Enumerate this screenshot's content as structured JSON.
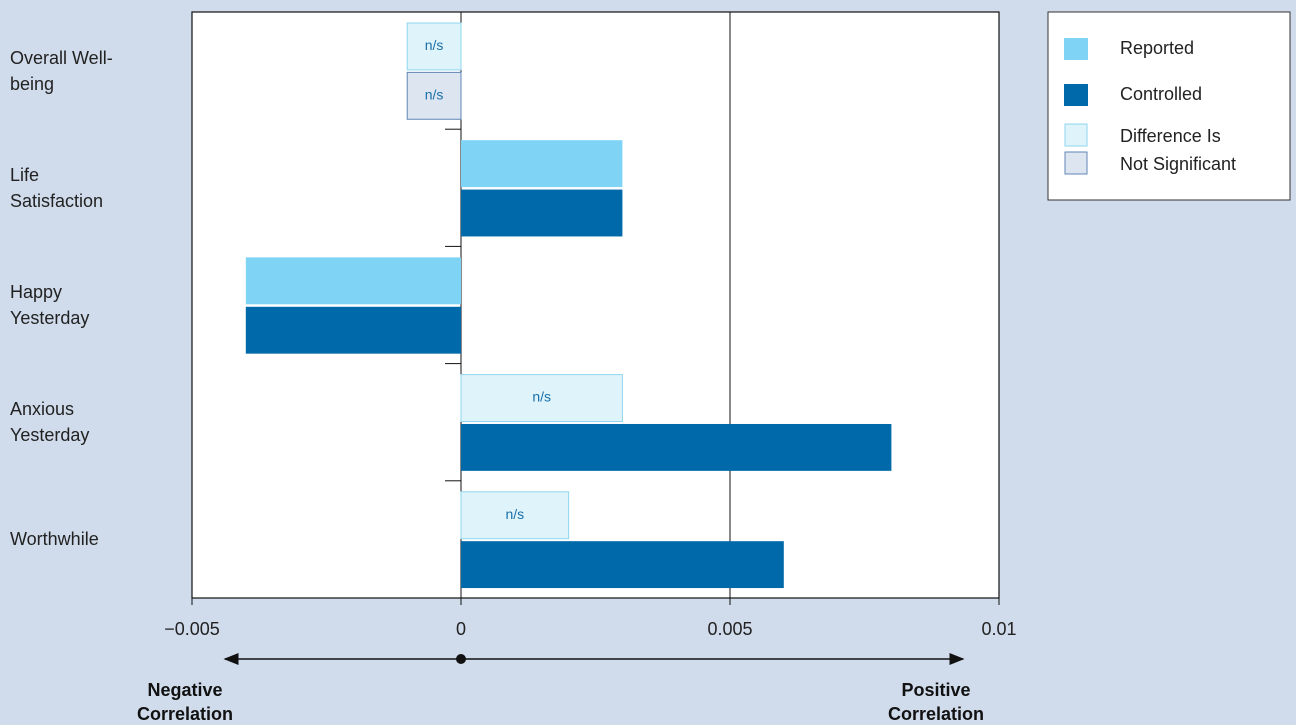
{
  "chart_data": {
    "type": "hbar",
    "categories": [
      "Overall Well-being",
      "Life Satisfaction",
      "Happy Yesterday",
      "Anxious Yesterday",
      "Worthwhile"
    ],
    "series": [
      {
        "name": "Reported",
        "color": "#7fd3f5",
        "ns_color": "#dff3fb",
        "ns_edge_color": "#8fd6ef",
        "values": [
          -0.001,
          0.003,
          -0.004,
          0.003,
          0.002
        ],
        "value_labels": [
          "n/s",
          null,
          null,
          "n/s",
          "n/s"
        ]
      },
      {
        "name": "Controlled",
        "color": "#0069aa",
        "ns_color": "#dde5f1",
        "ns_edge_color": "#5f86b5",
        "values": [
          -0.001,
          0.003,
          -0.004,
          0.008,
          0.006
        ],
        "value_labels": [
          "n/s",
          null,
          null,
          null,
          null
        ]
      }
    ],
    "ns_legend": [
      "Difference Is",
      "Not Significant"
    ],
    "xlim": [
      -0.005,
      0.01
    ],
    "xticks": [
      {
        "value": -0.005,
        "label": "−0.005"
      },
      0,
      0.005,
      0.01
    ],
    "grid": true,
    "annotations": [
      "Negative Correlation",
      "Positive Correlation"
    ]
  }
}
